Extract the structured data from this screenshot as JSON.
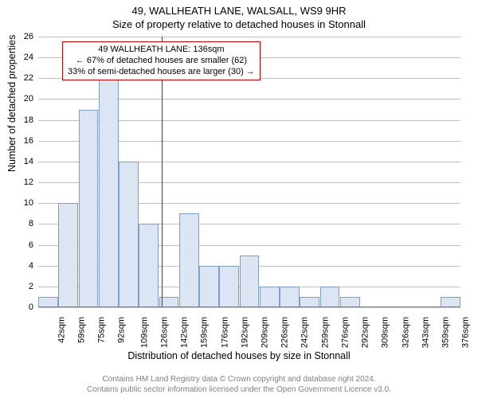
{
  "chart": {
    "type": "histogram",
    "title_main": "49, WALLHEATH LANE, WALSALL, WS9 9HR",
    "title_sub": "Size of property relative to detached houses in Stonnall",
    "x_axis_title": "Distribution of detached houses by size in Stonnall",
    "y_axis_title": "Number of detached properties",
    "background_color": "#ffffff",
    "grid_color": "#bfbfbf",
    "bar_fill": "#dbe5f4",
    "bar_border": "#7f9ec7",
    "marker_color": "#cc0000",
    "annotation_border": "#cc0000",
    "text_color": "#000000",
    "footer_color": "#808080",
    "ylim": [
      0,
      26
    ],
    "yticks": [
      0,
      2,
      4,
      6,
      8,
      10,
      12,
      14,
      16,
      18,
      20,
      22,
      24,
      26
    ],
    "x_labels": [
      "42sqm",
      "59sqm",
      "75sqm",
      "92sqm",
      "109sqm",
      "126sqm",
      "142sqm",
      "159sqm",
      "176sqm",
      "192sqm",
      "209sqm",
      "226sqm",
      "242sqm",
      "259sqm",
      "276sqm",
      "292sqm",
      "309sqm",
      "326sqm",
      "343sqm",
      "359sqm",
      "376sqm"
    ],
    "bars": [
      1,
      10,
      19,
      22,
      14,
      8,
      1,
      9,
      4,
      4,
      5,
      2,
      2,
      1,
      2,
      1,
      0,
      0,
      0,
      0,
      1
    ],
    "marker_x_value": 136,
    "x_range": [
      42,
      376
    ],
    "annotation_lines": [
      "49 WALLHEATH LANE: 136sqm",
      "← 67% of detached houses are smaller (62)",
      "33% of semi-detached houses are larger (30) →"
    ],
    "footer_line1": "Contains HM Land Registry data © Crown copyright and database right 2024.",
    "footer_line2": "Contains public sector information licensed under the Open Government Licence v3.0.",
    "font_family": "Arial",
    "title_fontsize": 13,
    "axis_title_fontsize": 12.5,
    "tick_fontsize": 11,
    "annotation_fontsize": 11,
    "footer_fontsize": 10
  }
}
